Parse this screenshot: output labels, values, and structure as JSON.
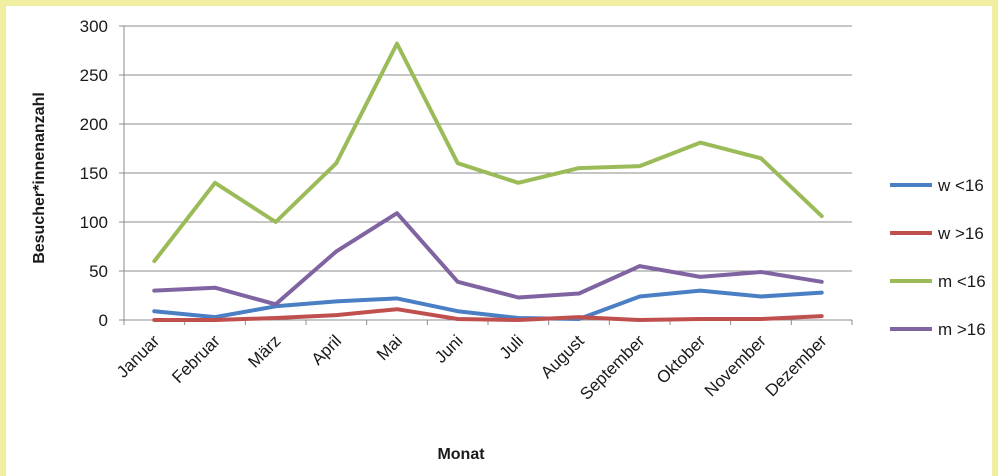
{
  "chart_data": {
    "type": "line",
    "xlabel": "Monat",
    "ylabel": "Besucher*innenanzahl",
    "ylim": [
      0,
      300
    ],
    "yticks": [
      0,
      50,
      100,
      150,
      200,
      250,
      300
    ],
    "grid": true,
    "legend_position": "right",
    "categories": [
      "Januar",
      "Februar",
      "März",
      "April",
      "Mai",
      "Juni",
      "Juli",
      "August",
      "September",
      "Oktober",
      "November",
      "Dezember"
    ],
    "series": [
      {
        "name": "w <16",
        "color": "#4a7fc4",
        "values": [
          9,
          3,
          14,
          19,
          22,
          9,
          2,
          1,
          24,
          30,
          24,
          28
        ]
      },
      {
        "name": "w >16",
        "color": "#c0504d",
        "values": [
          0,
          0,
          2,
          5,
          11,
          1,
          0,
          3,
          0,
          1,
          1,
          4
        ]
      },
      {
        "name": "m <16",
        "color": "#9bbb59",
        "values": [
          60,
          140,
          100,
          160,
          282,
          160,
          140,
          155,
          157,
          181,
          165,
          106
        ]
      },
      {
        "name": "m >16",
        "color": "#8064a2",
        "values": [
          30,
          33,
          16,
          70,
          109,
          39,
          23,
          27,
          55,
          44,
          49,
          39
        ]
      }
    ]
  }
}
